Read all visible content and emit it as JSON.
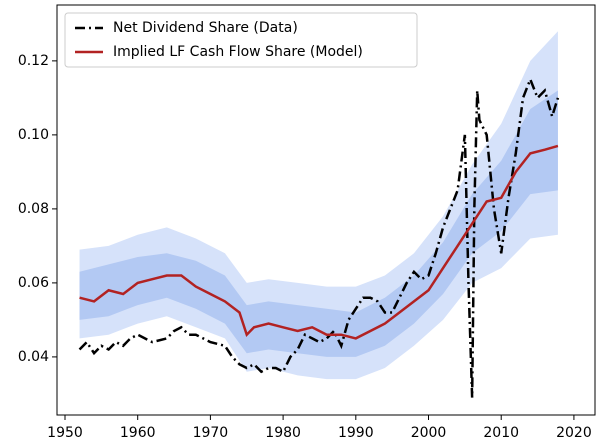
{
  "chart_data": {
    "type": "line",
    "xlim": [
      1948.9,
      2022.9
    ],
    "ylim": [
      0.0243,
      0.1351
    ],
    "xticks": [
      1950,
      1960,
      1970,
      1980,
      1990,
      2000,
      2010,
      2020
    ],
    "yticks": [
      0.04,
      0.06,
      0.08,
      {
        "value": 0.1,
        "label": "0.10"
      },
      0.12
    ],
    "grid": false,
    "legend": "upper-left",
    "bands": [
      {
        "color": "#d6e2fa",
        "x": [
          1952,
          1956,
          1960,
          1964,
          1968,
          1972,
          1975,
          1978,
          1982,
          1986,
          1990,
          1994,
          1998,
          2002,
          2006,
          2010,
          2014,
          2017.8
        ],
        "lower": [
          0.045,
          0.046,
          0.049,
          0.051,
          0.048,
          0.045,
          0.036,
          0.037,
          0.035,
          0.034,
          0.034,
          0.037,
          0.043,
          0.05,
          0.06,
          0.064,
          0.072,
          0.073
        ],
        "upper": [
          0.069,
          0.07,
          0.073,
          0.075,
          0.072,
          0.068,
          0.06,
          0.061,
          0.06,
          0.059,
          0.059,
          0.062,
          0.068,
          0.078,
          0.092,
          0.103,
          0.12,
          0.128
        ]
      },
      {
        "color": "#b3c9f3",
        "x": [
          1952,
          1956,
          1960,
          1964,
          1968,
          1972,
          1975,
          1978,
          1982,
          1986,
          1990,
          1994,
          1998,
          2002,
          2006,
          2010,
          2014,
          2017.8
        ],
        "lower": [
          0.05,
          0.051,
          0.054,
          0.056,
          0.053,
          0.049,
          0.041,
          0.042,
          0.041,
          0.04,
          0.04,
          0.043,
          0.049,
          0.057,
          0.068,
          0.074,
          0.084,
          0.085
        ],
        "upper": [
          0.063,
          0.065,
          0.067,
          0.068,
          0.066,
          0.062,
          0.054,
          0.055,
          0.054,
          0.053,
          0.052,
          0.056,
          0.062,
          0.071,
          0.084,
          0.093,
          0.107,
          0.112
        ]
      }
    ],
    "series": [
      {
        "name": "Net Dividend Share (Data)",
        "color": "#000000",
        "dash": "dashdot",
        "x": [
          1952,
          1953,
          1954,
          1955,
          1956,
          1957,
          1958,
          1959,
          1960,
          1962,
          1964,
          1965,
          1966,
          1967,
          1968,
          1970,
          1972,
          1973,
          1974,
          1975,
          1976,
          1977,
          1978,
          1979,
          1980,
          1981,
          1982,
          1983,
          1984,
          1985,
          1986,
          1987,
          1988,
          1989,
          1990,
          1991,
          1992,
          1993,
          1994,
          1995,
          1996,
          1997,
          1998,
          1999,
          2000,
          2001,
          2002,
          2003,
          2004,
          2005,
          2005.5,
          2006,
          2006.3,
          2006.7,
          2007,
          2008,
          2009,
          2010,
          2011,
          2012,
          2013,
          2014,
          2015,
          2016,
          2017,
          2017.8
        ],
        "values": [
          0.042,
          0.044,
          0.041,
          0.043,
          0.042,
          0.044,
          0.043,
          0.045,
          0.046,
          0.044,
          0.045,
          0.047,
          0.048,
          0.046,
          0.046,
          0.044,
          0.043,
          0.04,
          0.038,
          0.037,
          0.038,
          0.036,
          0.037,
          0.037,
          0.036,
          0.04,
          0.042,
          0.046,
          0.045,
          0.044,
          0.045,
          0.047,
          0.043,
          0.05,
          0.053,
          0.056,
          0.056,
          0.055,
          0.052,
          0.052,
          0.056,
          0.06,
          0.063,
          0.061,
          0.062,
          0.068,
          0.075,
          0.08,
          0.085,
          0.1,
          0.06,
          0.029,
          0.08,
          0.112,
          0.104,
          0.1,
          0.08,
          0.068,
          0.083,
          0.095,
          0.11,
          0.115,
          0.11,
          0.112,
          0.105,
          0.11
        ]
      },
      {
        "name": "Implied LF Cash Flow Share (Model)",
        "color": "#b22222",
        "dash": "solid",
        "x": [
          1952,
          1954,
          1956,
          1958,
          1960,
          1962,
          1964,
          1966,
          1968,
          1970,
          1972,
          1974,
          1975,
          1976,
          1978,
          1980,
          1982,
          1984,
          1986,
          1988,
          1990,
          1992,
          1994,
          1996,
          1998,
          2000,
          2002,
          2004,
          2006,
          2008,
          2010,
          2012,
          2014,
          2016,
          2017.8
        ],
        "values": [
          0.056,
          0.055,
          0.058,
          0.057,
          0.06,
          0.061,
          0.062,
          0.062,
          0.059,
          0.057,
          0.055,
          0.052,
          0.046,
          0.048,
          0.049,
          0.048,
          0.047,
          0.048,
          0.046,
          0.046,
          0.045,
          0.047,
          0.049,
          0.052,
          0.055,
          0.058,
          0.064,
          0.07,
          0.076,
          0.082,
          0.083,
          0.09,
          0.095,
          0.096,
          0.097
        ]
      }
    ]
  }
}
